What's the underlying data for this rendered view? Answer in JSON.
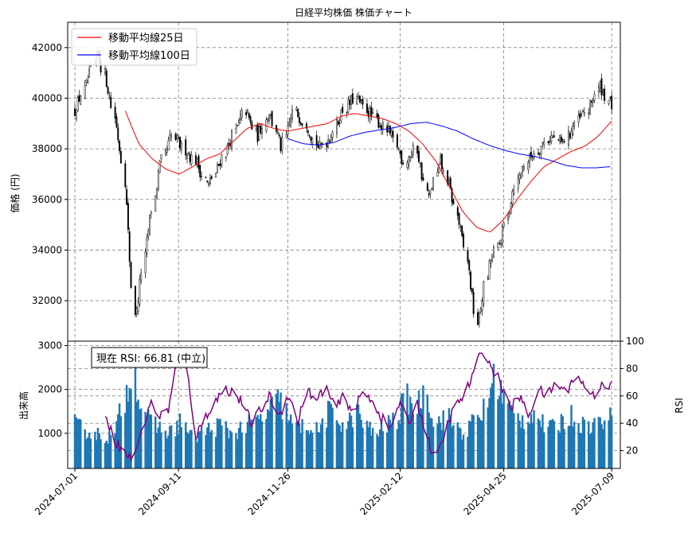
{
  "chart_data": [
    {
      "type": "candlestick",
      "title": "日経平均株価 株価チャート",
      "ylabel": "価格 (円)",
      "ylim": [
        30400,
        43000
      ],
      "yticks": [
        32000,
        34000,
        36000,
        38000,
        40000,
        42000
      ],
      "grid": true,
      "legend_position": "top-left",
      "series": [
        {
          "name": "移動平均線25日",
          "color": "#ff0000",
          "values": [
            39500,
            38200,
            37600,
            37200,
            37000,
            37300,
            37600,
            37800,
            38300,
            38800,
            39000,
            38800,
            38700,
            38800,
            38900,
            39000,
            39300,
            39400,
            39300,
            39200,
            39000,
            38700,
            38200,
            37500,
            36500,
            35500,
            34900,
            34700,
            35200,
            36000,
            36700,
            37300,
            37600,
            37900,
            38100,
            38500,
            39100
          ]
        },
        {
          "name": "移動平均線100日",
          "color": "#0000ff",
          "values": [
            38400,
            38200,
            38150,
            38250,
            38500,
            38650,
            38750,
            38850,
            39000,
            39050,
            38900,
            38700,
            38400,
            38150,
            37950,
            37800,
            37700,
            37550,
            37350,
            37250,
            37250,
            37300
          ]
        }
      ],
      "ohlc_close_path": [
        39500,
        40500,
        41800,
        40000,
        37500,
        31200,
        34500,
        37200,
        38500,
        38000,
        37500,
        36500,
        37500,
        38500,
        39500,
        38500,
        39500,
        38000,
        39500,
        39000,
        38000,
        38500,
        39500,
        40000,
        39500,
        39000,
        38500,
        37500,
        38000,
        36000,
        37500,
        36000,
        34000,
        31000,
        33500,
        34500,
        36500,
        37500,
        38000,
        38500,
        38200,
        39000,
        39500,
        40500,
        39700
      ]
    },
    {
      "type": "bar+line",
      "ylabel": "出来高",
      "y2label": "RSI",
      "ylim": [
        200,
        3100
      ],
      "yticks": [
        1000,
        2000,
        3000
      ],
      "y2lim": [
        7,
        100
      ],
      "y2ticks": [
        20,
        40,
        60,
        80,
        100
      ],
      "xlim": [
        "2024-06-26",
        "2025-07-15"
      ],
      "xticks": [
        "2024-07-01",
        "2024-09-11",
        "2024-11-26",
        "2025-02-12",
        "2025-04-25",
        "2025-07-09"
      ],
      "annotation": "現在 RSI: 66.81 (中立)",
      "colors": {
        "volume": "#1f77b4",
        "rsi": "#800080"
      },
      "volume_path": [
        1200,
        1100,
        1000,
        950,
        900,
        1600,
        2500,
        1600,
        1200,
        1100,
        1000,
        1300,
        900,
        1000,
        1100,
        1200,
        1000,
        1100,
        1200,
        1300,
        1500,
        1800,
        1300,
        1100,
        1200,
        1000,
        1500,
        1300,
        1200,
        1500,
        1100,
        1000,
        1200,
        1300,
        1800,
        1600,
        2000,
        1200,
        1400,
        1200,
        1000,
        1300,
        1500,
        2300,
        1800,
        1400,
        1300,
        1500,
        1200,
        1100,
        1300,
        1400,
        1200,
        1200,
        1300,
        1350
      ],
      "rsi_path": [
        52,
        30,
        20,
        14,
        30,
        55,
        45,
        50,
        88,
        80,
        30,
        45,
        55,
        65,
        63,
        55,
        40,
        50,
        60,
        45,
        62,
        40,
        65,
        55,
        68,
        50,
        60,
        48,
        62,
        58,
        45,
        35,
        55,
        40,
        55,
        30,
        12,
        35,
        52,
        60,
        75,
        95,
        80,
        70,
        50,
        60,
        45,
        65,
        60,
        70,
        62,
        75,
        68,
        60,
        70,
        67
      ]
    }
  ]
}
